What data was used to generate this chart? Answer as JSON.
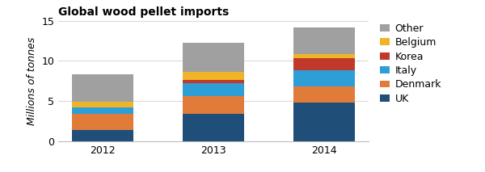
{
  "title": "Global wood pellet imports",
  "ylabel": "Millions of tonnes",
  "years": [
    "2012",
    "2013",
    "2014"
  ],
  "categories": [
    "UK",
    "Denmark",
    "Italy",
    "Korea",
    "Belgium",
    "Other"
  ],
  "values": {
    "UK": [
      1.4,
      3.4,
      4.8
    ],
    "Denmark": [
      2.0,
      2.2,
      2.0
    ],
    "Italy": [
      0.8,
      1.6,
      2.0
    ],
    "Korea": [
      0.0,
      0.4,
      1.5
    ],
    "Belgium": [
      0.7,
      1.0,
      0.5
    ],
    "Other": [
      3.4,
      3.6,
      3.4
    ]
  },
  "colors": {
    "UK": "#1f4e79",
    "Denmark": "#e07b39",
    "Italy": "#2e9fd6",
    "Korea": "#c0392b",
    "Belgium": "#f0b429",
    "Other": "#a0a0a0"
  },
  "ylim": [
    0,
    15
  ],
  "yticks": [
    0,
    5,
    10,
    15
  ],
  "bar_width": 0.55,
  "legend_order": [
    "Other",
    "Belgium",
    "Korea",
    "Italy",
    "Denmark",
    "UK"
  ],
  "background_color": "#ffffff",
  "title_fontsize": 10,
  "axis_fontsize": 9,
  "legend_fontsize": 9
}
